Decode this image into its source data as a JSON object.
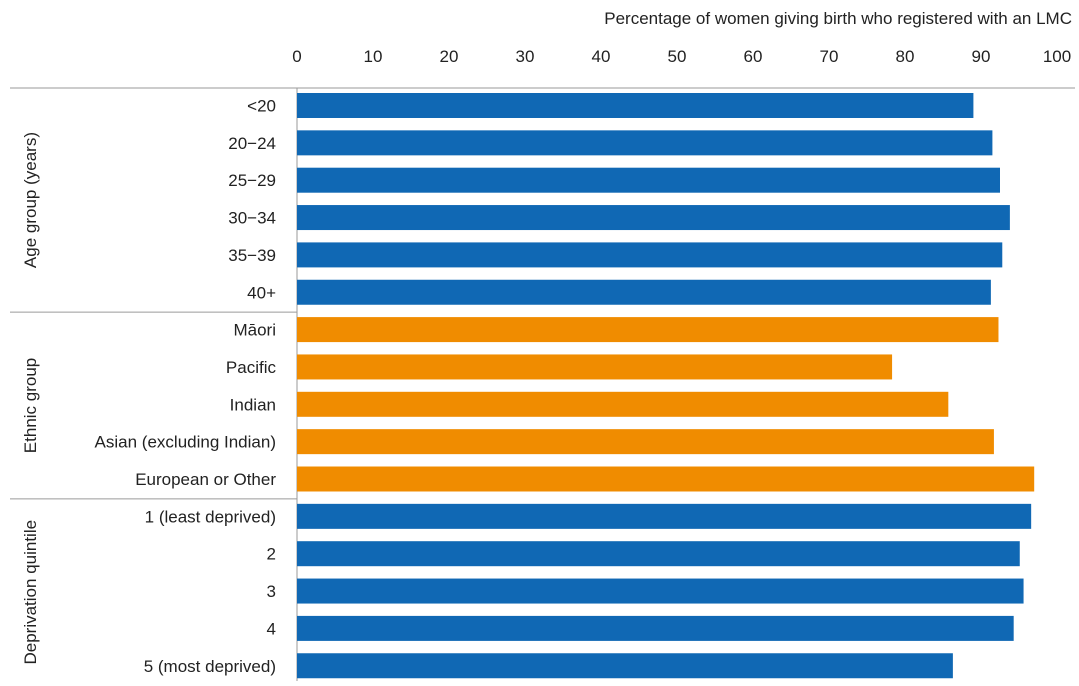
{
  "chart_data": {
    "type": "bar",
    "orientation": "horizontal",
    "xlabel": "Percentage of women giving birth who registered with an LMC",
    "xlim": [
      0,
      100
    ],
    "xticks": [
      0,
      10,
      20,
      30,
      40,
      50,
      60,
      70,
      80,
      90,
      100
    ],
    "axis_position": "top",
    "grid": false,
    "groups": [
      {
        "label": "Age group (years)",
        "color": "#1068b4",
        "categories": [
          "<20",
          "20−24",
          "25−29",
          "30−34",
          "35−39",
          "40+"
        ],
        "values": [
          89.0,
          91.5,
          92.5,
          93.8,
          92.8,
          91.3
        ]
      },
      {
        "label": "Ethnic group",
        "color": "#f08c00",
        "categories": [
          "Māori",
          "Pacific",
          "Indian",
          "Asian (excluding Indian)",
          "European or Other"
        ],
        "values": [
          92.3,
          78.3,
          85.7,
          91.7,
          97.0
        ]
      },
      {
        "label": "Deprivation quintile",
        "color": "#1068b4",
        "categories": [
          "1 (least deprived)",
          "2",
          "3",
          "4",
          "5 (most deprived)"
        ],
        "values": [
          96.6,
          95.1,
          95.6,
          94.3,
          86.3
        ]
      }
    ]
  }
}
